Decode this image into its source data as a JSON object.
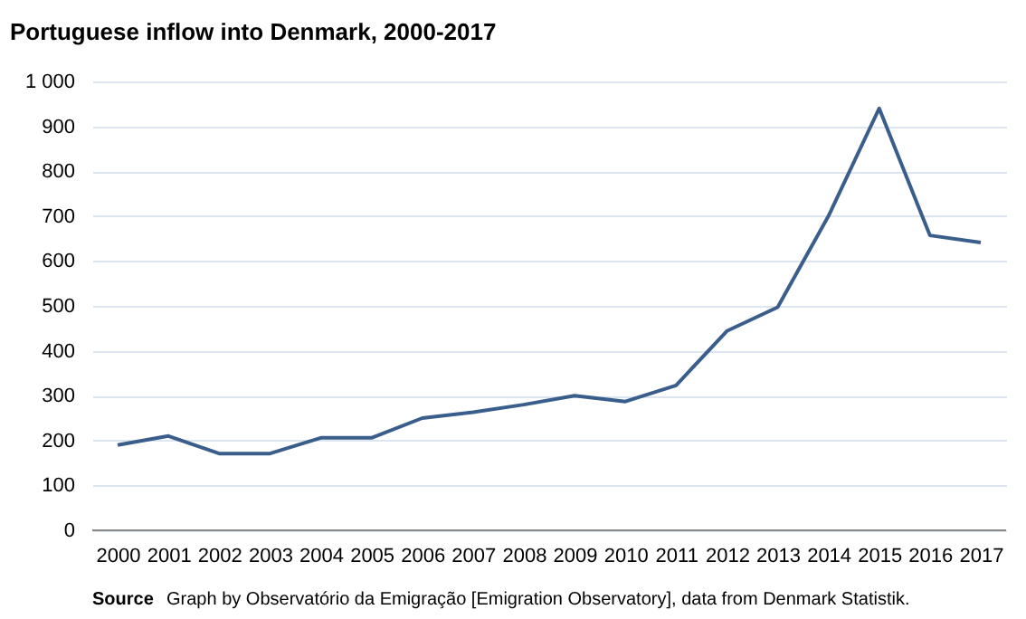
{
  "chart_data": {
    "type": "line",
    "title": "Portuguese  inflow into Denmark, 2000-2017",
    "categories": [
      "2000",
      "2001",
      "2002",
      "2003",
      "2004",
      "2005",
      "2006",
      "2007",
      "2008",
      "2009",
      "2010",
      "2011",
      "2012",
      "2013",
      "2014",
      "2015",
      "2016",
      "2017"
    ],
    "series": [
      {
        "color": "#3a5e8c",
        "values": [
          190,
          210,
          171,
          171,
          206,
          206,
          250,
          263,
          280,
          300,
          287,
          323,
          444,
          497,
          700,
          940,
          657,
          641
        ]
      }
    ],
    "ylim": [
      0,
      1000
    ],
    "yticks": [
      0,
      100,
      200,
      300,
      400,
      500,
      600,
      700,
      800,
      900,
      {
        "value": 1000,
        "label": "1 000"
      }
    ],
    "grid": "y",
    "legend": false,
    "marker": "none",
    "line_style": "solid",
    "annotations": [
      "Source",
      "Graph by Observatório da Emigração [Emigration Observatory], data from Denmark Statistik."
    ]
  }
}
